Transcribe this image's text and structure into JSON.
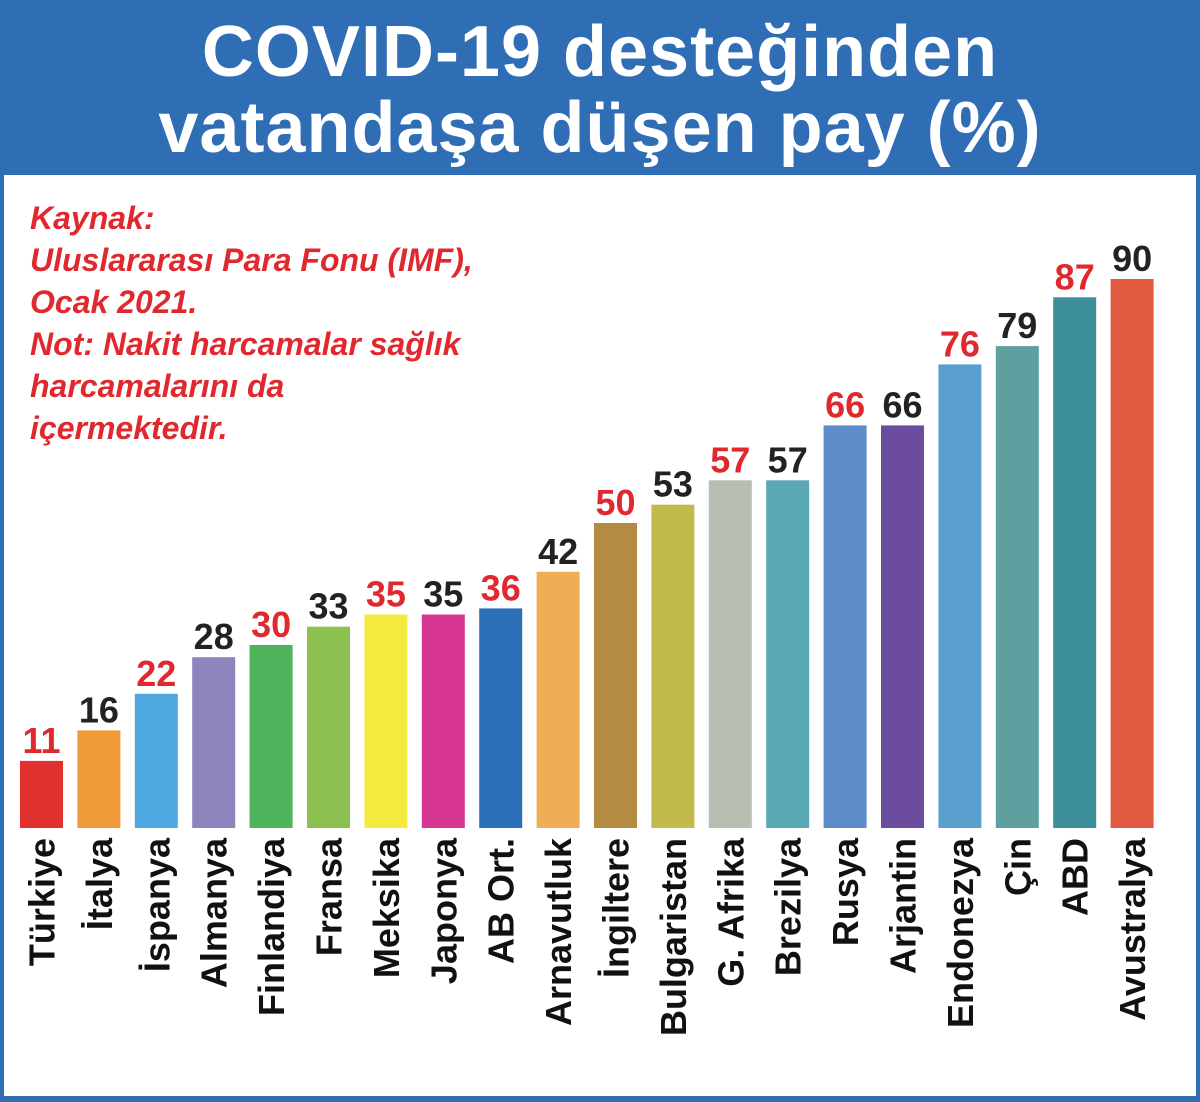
{
  "chart_data": {
    "type": "bar",
    "title_lines": [
      "COVID-19 desteğinden",
      "vatandaşa düşen pay (%)"
    ],
    "source_note_lines": [
      "Kaynak:",
      "Uluslararası Para Fonu (IMF),",
      "Ocak 2021.",
      "Not: Nakit harcamalar sağlık",
      "harcamalarını da",
      "içermektedir."
    ],
    "xlabel": "",
    "ylabel": "",
    "ylim": [
      0,
      90
    ],
    "categories": [
      "Türkiye",
      "İtalya",
      "İspanya",
      "Almanya",
      "Finlandiya",
      "Fransa",
      "Meksika",
      "Japonya",
      "AB Ort.",
      "Arnavutluk",
      "İngiltere",
      "Bulgaristan",
      "G. Afrika",
      "Brezilya",
      "Rusya",
      "Arjantin",
      "Endonezya",
      "Çin",
      "ABD",
      "Avustralya"
    ],
    "values": [
      11,
      16,
      22,
      28,
      30,
      33,
      35,
      35,
      36,
      42,
      50,
      53,
      57,
      57,
      66,
      66,
      76,
      79,
      87,
      90
    ],
    "bar_colors": [
      "#e0312f",
      "#ef9b3a",
      "#4fa8df",
      "#8e85bf",
      "#4fb35b",
      "#8cc152",
      "#f5ea40",
      "#d63591",
      "#2b6fb6",
      "#efae55",
      "#b58a43",
      "#c1bb4e",
      "#b6bfb2",
      "#5aa8b3",
      "#5e8ccb",
      "#6b4c9e",
      "#5aa0cf",
      "#5e9fa0",
      "#3c8f9b",
      "#e05a40"
    ],
    "label_colors": [
      "#e0282f",
      "#222222",
      "#e0282f",
      "#222222",
      "#e0282f",
      "#222222",
      "#e0282f",
      "#222222",
      "#e0282f",
      "#222222",
      "#e0282f",
      "#222222",
      "#e0282f",
      "#222222",
      "#e0282f",
      "#222222",
      "#e0282f",
      "#222222",
      "#e0282f",
      "#222222"
    ]
  },
  "colors": {
    "header_bg": "#2f6db5",
    "title_text": "#ffffff",
    "note_text": "#e0282f",
    "category_text": "#111111"
  }
}
